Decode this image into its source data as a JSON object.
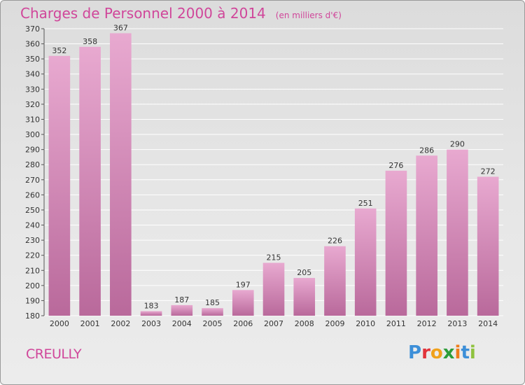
{
  "header": {
    "title": "Charges de Personnel 2000 à 2014",
    "subtitle": "(en milliers d'€)"
  },
  "footer": {
    "commune": "CREULLY",
    "logo_text": "Proxiti"
  },
  "colors": {
    "title": "#d0469a",
    "bar_top": "#e8a9d0",
    "bar_bottom": "#b9699b",
    "logo_letters": [
      "#3d8fd8",
      "#e2343b",
      "#f0a11b",
      "#2d9d3a",
      "#ef7d1a",
      "#3d8fd8",
      "#8fc23f"
    ]
  },
  "chart_data": {
    "type": "bar",
    "categories": [
      "2000",
      "2001",
      "2002",
      "2003",
      "2004",
      "2005",
      "2006",
      "2007",
      "2008",
      "2009",
      "2010",
      "2011",
      "2012",
      "2013",
      "2014"
    ],
    "values": [
      352,
      358,
      367,
      183,
      187,
      185,
      197,
      215,
      205,
      226,
      251,
      276,
      286,
      290,
      272
    ],
    "ylim": [
      180,
      370
    ],
    "yticks": [
      180,
      190,
      200,
      210,
      220,
      230,
      240,
      250,
      260,
      270,
      280,
      290,
      300,
      310,
      320,
      330,
      340,
      350,
      360,
      370
    ],
    "grid": true
  }
}
